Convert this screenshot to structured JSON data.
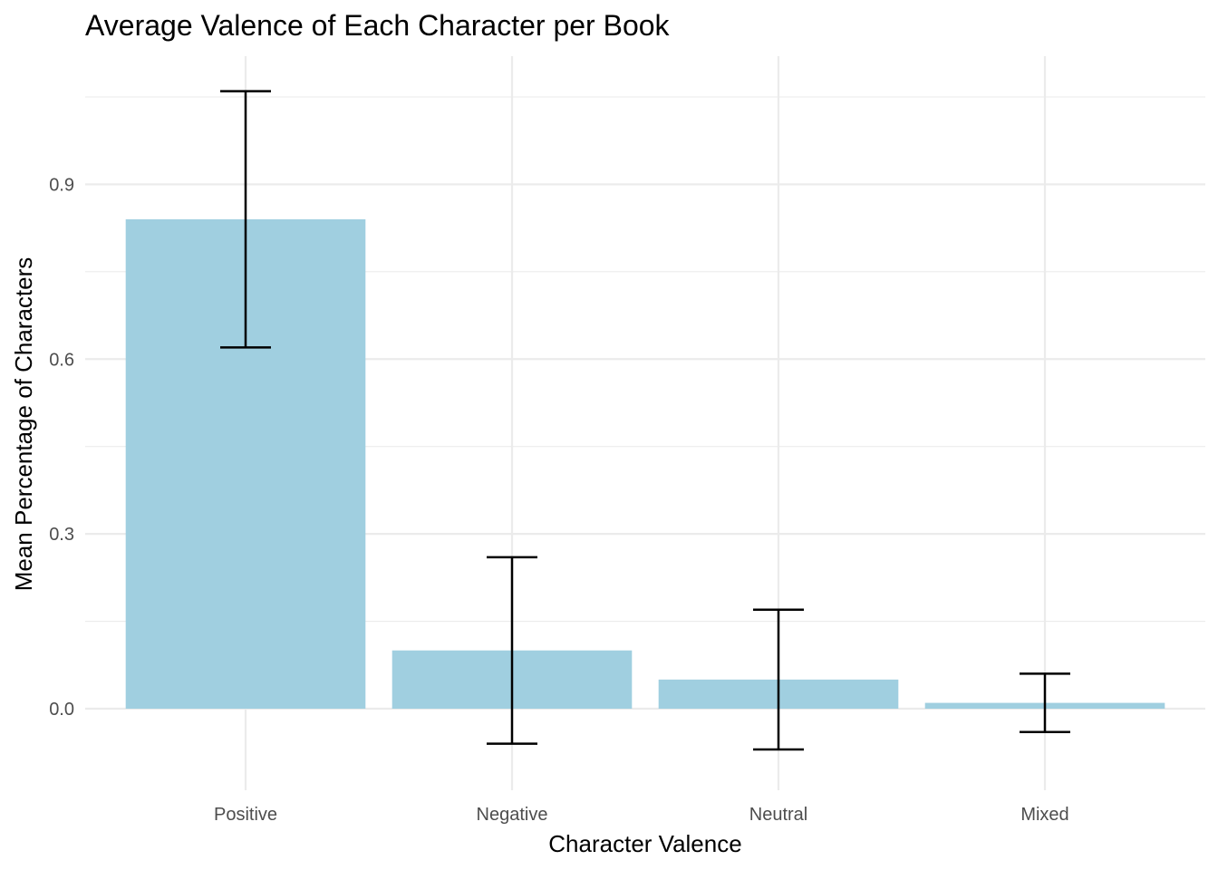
{
  "chart_data": {
    "type": "bar",
    "title": "Average Valence of Each Character per Book",
    "xlabel": "Character Valence",
    "ylabel": "Mean Percentage of Characters",
    "categories": [
      "Positive",
      "Negative",
      "Neutral",
      "Mixed"
    ],
    "values": [
      0.84,
      0.1,
      0.05,
      0.01
    ],
    "error_lower": [
      0.62,
      -0.06,
      -0.07,
      -0.04
    ],
    "error_upper": [
      1.06,
      0.26,
      0.17,
      0.06
    ],
    "ylim": [
      -0.14,
      1.12
    ],
    "yticks": [
      0.0,
      0.3,
      0.6,
      0.9
    ],
    "ytick_labels": [
      "0.0",
      "0.3",
      "0.6",
      "0.9"
    ],
    "grid": true,
    "legend": "none",
    "bar_color": "#a0cfe0"
  }
}
